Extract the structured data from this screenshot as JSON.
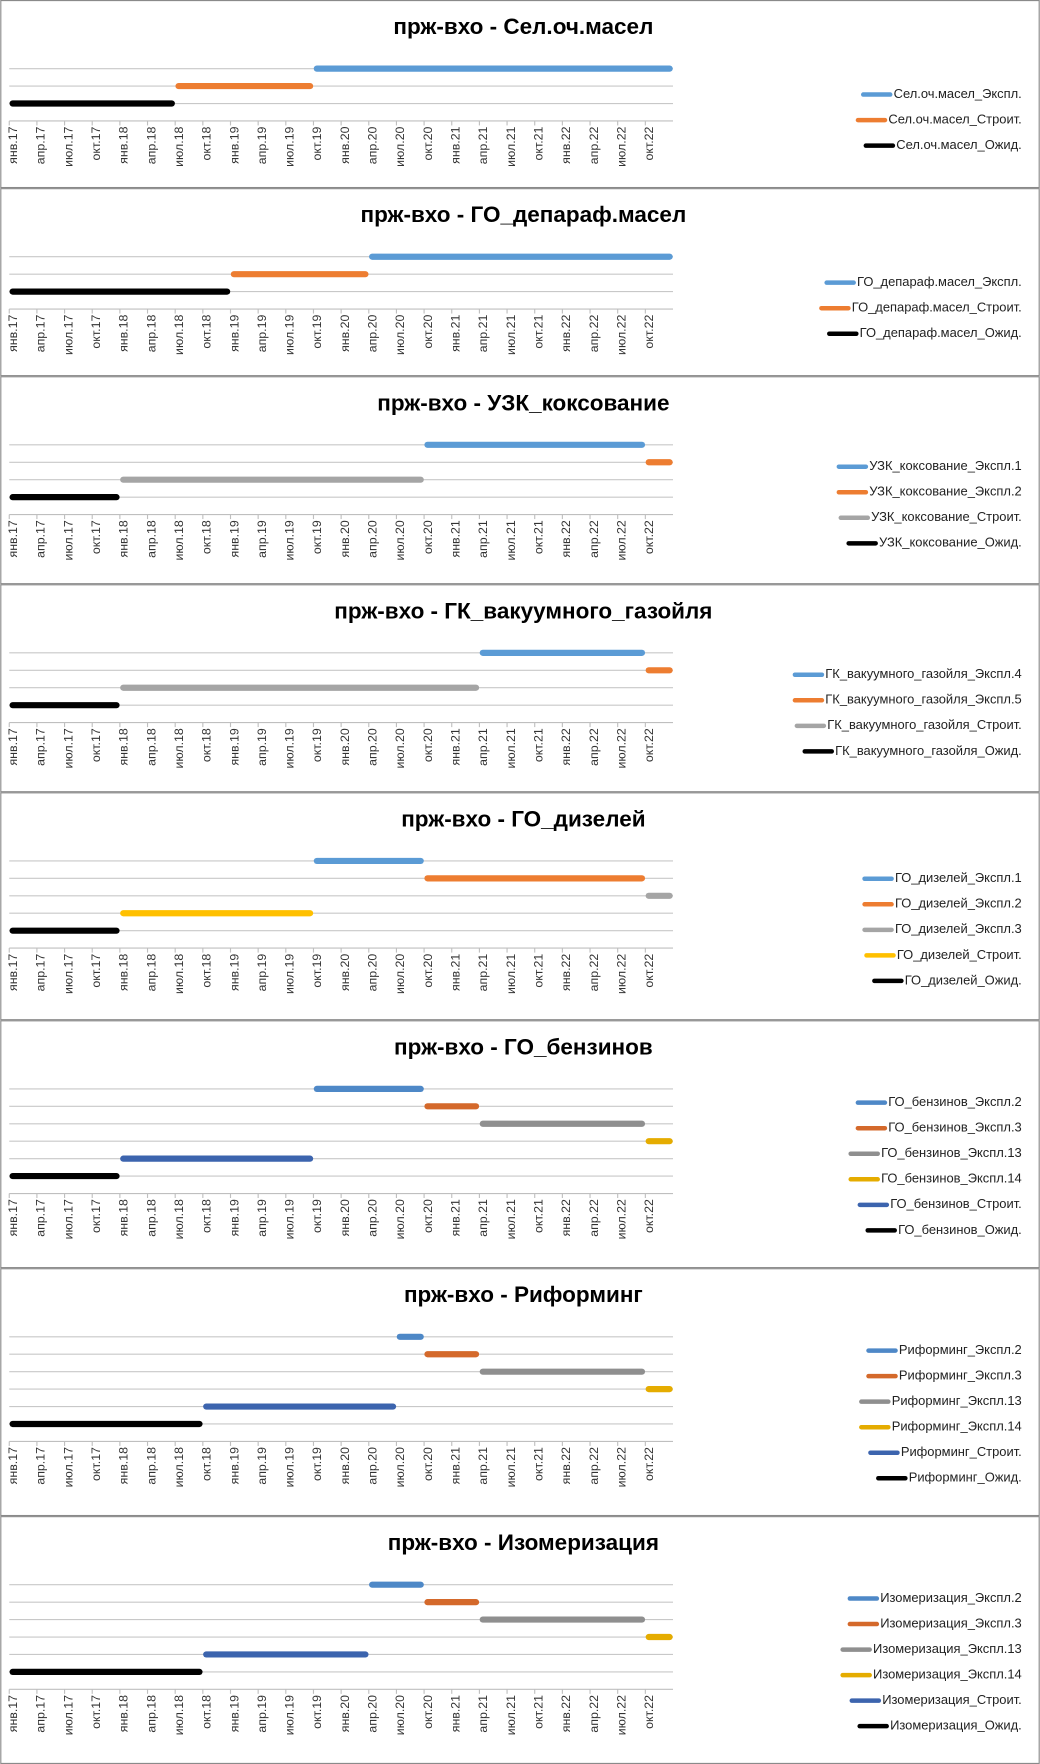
{
  "chart_data": [
    {
      "type": "gantt",
      "title": "прж-вхо - Сел.оч.масел",
      "categories": [
        "янв.17",
        "апр.17",
        "июл.17",
        "окт.17",
        "янв.18",
        "апр.18",
        "июл.18",
        "окт.18",
        "янв.19",
        "апр.19",
        "июл.19",
        "окт.19",
        "янв.20",
        "апр.20",
        "июл.20",
        "окт.20",
        "янв.21",
        "апр.21",
        "июл.21",
        "окт.21",
        "янв.22",
        "апр.22",
        "июл.22",
        "окт.22"
      ],
      "series": [
        {
          "name": "Сел.оч.масел_Экспл.",
          "color": "#5b9bd5",
          "start": "окт.19",
          "end": "окт.22"
        },
        {
          "name": "Сел.оч.масел_Строит.",
          "color": "#ed7d31",
          "start": "июл.18",
          "end": "июл.19"
        },
        {
          "name": "Сел.оч.масел_Ожид.",
          "color": "#000000",
          "start": "янв.17",
          "end": "апр.18"
        }
      ]
    },
    {
      "type": "gantt",
      "title": "прж-вхо - ГО_депараф.масел",
      "categories": [
        "янв.17",
        "апр.17",
        "июл.17",
        "окт.17",
        "янв.18",
        "апр.18",
        "июл.18",
        "окт.18",
        "янв.19",
        "апр.19",
        "июл.19",
        "окт.19",
        "янв.20",
        "апр.20",
        "июл.20",
        "окт.20",
        "янв.21",
        "апр.21",
        "июл.21",
        "окт.21",
        "янв.22",
        "апр.22",
        "июл.22",
        "окт.22"
      ],
      "series": [
        {
          "name": "ГО_депараф.масел_Экспл.",
          "color": "#5b9bd5",
          "start": "апр.20",
          "end": "окт.22"
        },
        {
          "name": "ГО_депараф.масел_Строит.",
          "color": "#ed7d31",
          "start": "янв.19",
          "end": "янв.20"
        },
        {
          "name": "ГО_депараф.масел_Ожид.",
          "color": "#000000",
          "start": "янв.17",
          "end": "окт.18"
        }
      ]
    },
    {
      "type": "gantt",
      "title": "прж-вхо - УЗК_коксование",
      "categories": [
        "янв.17",
        "апр.17",
        "июл.17",
        "окт.17",
        "янв.18",
        "апр.18",
        "июл.18",
        "окт.18",
        "янв.19",
        "апр.19",
        "июл.19",
        "окт.19",
        "янв.20",
        "апр.20",
        "июл.20",
        "окт.20",
        "янв.21",
        "апр.21",
        "июл.21",
        "окт.21",
        "янв.22",
        "апр.22",
        "июл.22",
        "окт.22"
      ],
      "series": [
        {
          "name": "УЗК_коксование_Экспл.1",
          "color": "#5b9bd5",
          "start": "окт.20",
          "end": "июл.22"
        },
        {
          "name": "УЗК_коксование_Экспл.2",
          "color": "#ed7d31",
          "start": "окт.22",
          "end": "окт.22"
        },
        {
          "name": "УЗК_коксование_Строит.",
          "color": "#a5a5a5",
          "start": "янв.18",
          "end": "июл.20"
        },
        {
          "name": "УЗК_коксование_Ожид.",
          "color": "#000000",
          "start": "янв.17",
          "end": "окт.17"
        }
      ]
    },
    {
      "type": "gantt",
      "title": "прж-вхо - ГК_вакуумного_газойля",
      "categories": [
        "янв.17",
        "апр.17",
        "июл.17",
        "окт.17",
        "янв.18",
        "апр.18",
        "июл.18",
        "окт.18",
        "янв.19",
        "апр.19",
        "июл.19",
        "окт.19",
        "янв.20",
        "апр.20",
        "июл.20",
        "окт.20",
        "янв.21",
        "апр.21",
        "июл.21",
        "окт.21",
        "янв.22",
        "апр.22",
        "июл.22",
        "окт.22"
      ],
      "series": [
        {
          "name": "ГК_вакуумного_газойля_Экспл.4",
          "color": "#5b9bd5",
          "start": "апр.21",
          "end": "июл.22"
        },
        {
          "name": "ГК_вакуумного_газойля_Экспл.5",
          "color": "#ed7d31",
          "start": "окт.22",
          "end": "окт.22"
        },
        {
          "name": "ГК_вакуумного_газойля_Строит.",
          "color": "#a5a5a5",
          "start": "янв.18",
          "end": "янв.21"
        },
        {
          "name": "ГК_вакуумного_газойля_Ожид.",
          "color": "#000000",
          "start": "янв.17",
          "end": "окт.17"
        }
      ]
    },
    {
      "type": "gantt",
      "title": "прж-вхо - ГО_дизелей",
      "categories": [
        "янв.17",
        "апр.17",
        "июл.17",
        "окт.17",
        "янв.18",
        "апр.18",
        "июл.18",
        "окт.18",
        "янв.19",
        "апр.19",
        "июл.19",
        "окт.19",
        "янв.20",
        "апр.20",
        "июл.20",
        "окт.20",
        "янв.21",
        "апр.21",
        "июл.21",
        "окт.21",
        "янв.22",
        "апр.22",
        "июл.22",
        "окт.22"
      ],
      "series": [
        {
          "name": "ГО_дизелей_Экспл.1",
          "color": "#5b9bd5",
          "start": "окт.19",
          "end": "июл.20"
        },
        {
          "name": "ГО_дизелей_Экспл.2",
          "color": "#ed7d31",
          "start": "окт.20",
          "end": "июл.22"
        },
        {
          "name": "ГО_дизелей_Экспл.3",
          "color": "#a5a5a5",
          "start": "окт.22",
          "end": "окт.22"
        },
        {
          "name": "ГО_дизелей_Строит.",
          "color": "#ffc000",
          "start": "янв.18",
          "end": "июл.19"
        },
        {
          "name": "ГО_дизелей_Ожид.",
          "color": "#000000",
          "start": "янв.17",
          "end": "окт.17"
        }
      ]
    },
    {
      "type": "gantt",
      "title": "прж-вхо - ГО_бензинов",
      "categories": [
        "янв.17",
        "апр.17",
        "июл.17",
        "окт.17",
        "янв.18",
        "апр.18",
        "июл.18",
        "окт.18",
        "янв.19",
        "апр.19",
        "июл.19",
        "окт.19",
        "янв.20",
        "апр.20",
        "июл.20",
        "окт.20",
        "янв.21",
        "апр.21",
        "июл.21",
        "окт.21",
        "янв.22",
        "апр.22",
        "июл.22",
        "окт.22"
      ],
      "series": [
        {
          "name": "ГО_бензинов_Экспл.2",
          "color": "#4e88c7",
          "start": "окт.19",
          "end": "июл.20"
        },
        {
          "name": "ГО_бензинов_Экспл.3",
          "color": "#d4692b",
          "start": "окт.20",
          "end": "янв.21"
        },
        {
          "name": "ГО_бензинов_Экспл.13",
          "color": "#8f8f8f",
          "start": "апр.21",
          "end": "июл.22"
        },
        {
          "name": "ГО_бензинов_Экспл.14",
          "color": "#e5ac00",
          "start": "окт.22",
          "end": "окт.22"
        },
        {
          "name": "ГО_бензинов_Строит.",
          "color": "#3c64ae",
          "start": "янв.18",
          "end": "июл.19"
        },
        {
          "name": "ГО_бензинов_Ожид.",
          "color": "#000000",
          "start": "янв.17",
          "end": "окт.17"
        }
      ]
    },
    {
      "type": "gantt",
      "title": "прж-вхо - Риформинг",
      "categories": [
        "янв.17",
        "апр.17",
        "июл.17",
        "окт.17",
        "янв.18",
        "апр.18",
        "июл.18",
        "окт.18",
        "янв.19",
        "апр.19",
        "июл.19",
        "окт.19",
        "янв.20",
        "апр.20",
        "июл.20",
        "окт.20",
        "янв.21",
        "апр.21",
        "июл.21",
        "окт.21",
        "янв.22",
        "апр.22",
        "июл.22",
        "окт.22"
      ],
      "series": [
        {
          "name": "Риформинг_Экспл.2",
          "color": "#4e88c7",
          "start": "июл.20",
          "end": "июл.20"
        },
        {
          "name": "Риформинг_Экспл.3",
          "color": "#d4692b",
          "start": "окт.20",
          "end": "янв.21"
        },
        {
          "name": "Риформинг_Экспл.13",
          "color": "#8f8f8f",
          "start": "апр.21",
          "end": "июл.22"
        },
        {
          "name": "Риформинг_Экспл.14",
          "color": "#e5ac00",
          "start": "окт.22",
          "end": "окт.22"
        },
        {
          "name": "Риформинг_Строит.",
          "color": "#3c64ae",
          "start": "окт.18",
          "end": "апр.20"
        },
        {
          "name": "Риформинг_Ожид.",
          "color": "#000000",
          "start": "янв.17",
          "end": "июл.18"
        }
      ]
    },
    {
      "type": "gantt",
      "title": "прж-вхо - Изомеризация",
      "categories": [
        "янв.17",
        "апр.17",
        "июл.17",
        "окт.17",
        "янв.18",
        "апр.18",
        "июл.18",
        "окт.18",
        "янв.19",
        "апр.19",
        "июл.19",
        "окт.19",
        "янв.20",
        "апр.20",
        "июл.20",
        "окт.20",
        "янв.21",
        "апр.21",
        "июл.21",
        "окт.21",
        "янв.22",
        "апр.22",
        "июл.22",
        "окт.22"
      ],
      "series": [
        {
          "name": "Изомеризация_Экспл.2",
          "color": "#4e88c7",
          "start": "апр.20",
          "end": "июл.20"
        },
        {
          "name": "Изомеризация_Экспл.3",
          "color": "#d4692b",
          "start": "окт.20",
          "end": "янв.21"
        },
        {
          "name": "Изомеризация_Экспл.13",
          "color": "#8f8f8f",
          "start": "апр.21",
          "end": "июл.22"
        },
        {
          "name": "Изомеризация_Экспл.14",
          "color": "#e5ac00",
          "start": "окт.22",
          "end": "окт.22"
        },
        {
          "name": "Изомеризация_Строит.",
          "color": "#3c64ae",
          "start": "окт.18",
          "end": "янв.20"
        },
        {
          "name": "Изомеризация_Ожид.",
          "color": "#000000",
          "start": "янв.17",
          "end": "июл.18"
        }
      ]
    }
  ]
}
